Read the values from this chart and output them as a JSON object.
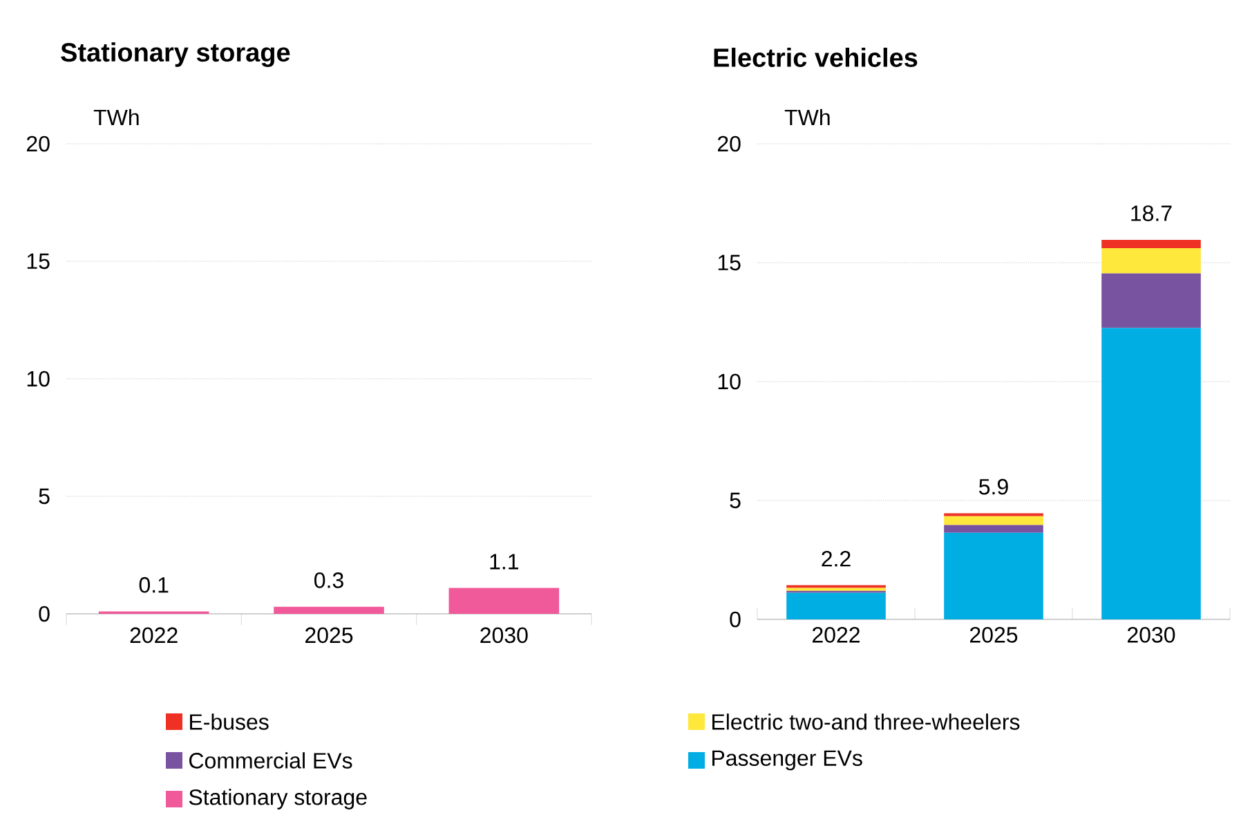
{
  "chart_data": [
    {
      "type": "bar",
      "title": "Stationary storage",
      "ylabel": "TWh",
      "categories": [
        "2022",
        "2025",
        "2030"
      ],
      "ylim": [
        0,
        20
      ],
      "yticks": [
        0,
        5,
        10,
        15,
        20
      ],
      "grid": "y",
      "legend": "bottom",
      "data_labels": true,
      "series": [
        {
          "name": "Stationary storage",
          "color": "#f05a9a",
          "values": [
            0.1,
            0.3,
            1.1
          ]
        }
      ]
    },
    {
      "type": "bar",
      "title": "Electric vehicles",
      "ylabel": "TWh",
      "categories": [
        "2022",
        "2025",
        "2030"
      ],
      "ylim": [
        0,
        20
      ],
      "yticks": [
        0,
        5,
        10,
        15,
        20
      ],
      "grid": "y",
      "legend": "bottom",
      "stacked": true,
      "annotations": [
        {
          "text": "2.2",
          "x": "2022",
          "y": 1.44
        },
        {
          "text": "5.9",
          "x": "2025",
          "y": 4.46
        },
        {
          "text": "18.7",
          "x": "2030",
          "y": 15.96
        }
      ],
      "series": [
        {
          "name": "Passenger EVs",
          "color": "#00aee3",
          "values": [
            1.12,
            3.64,
            12.25
          ]
        },
        {
          "name": "Commercial EVs",
          "color": "#7853a0",
          "values": [
            0.08,
            0.33,
            2.3
          ]
        },
        {
          "name": "Electric two-and three-wheelers",
          "color": "#ffe83c",
          "values": [
            0.12,
            0.37,
            1.06
          ]
        },
        {
          "name": "E-buses",
          "color": "#ee3124",
          "values": [
            0.12,
            0.12,
            0.35
          ]
        }
      ]
    }
  ]
}
